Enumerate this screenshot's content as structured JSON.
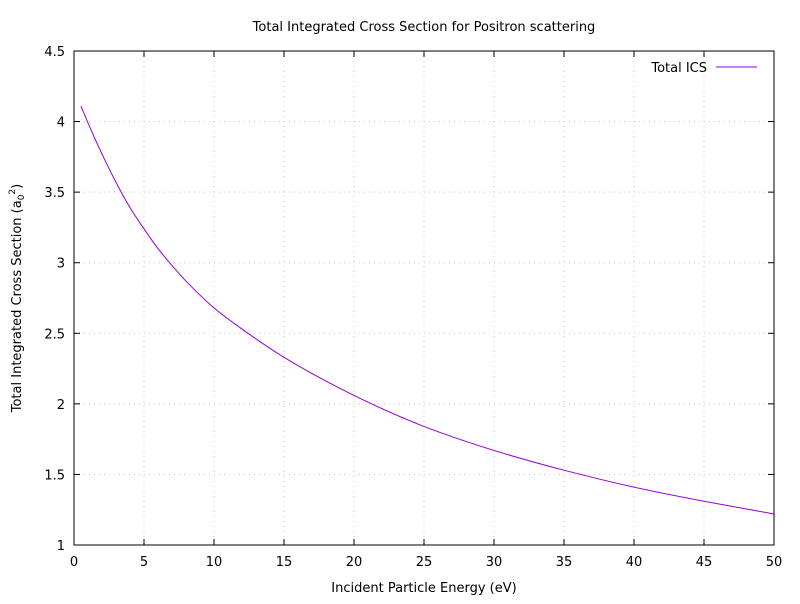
{
  "chart_data": {
    "type": "line",
    "title": "Total Integrated Cross Section for Positron scattering",
    "xlabel": "Incident Particle Energy (eV)",
    "ylabel": {
      "prefix": "Total Integrated Cross Section (a",
      "sub": "0",
      "sup": "2",
      "suffix": ")"
    },
    "xlim": [
      0,
      50
    ],
    "ylim": [
      1,
      4.5
    ],
    "xticks": [
      "0",
      "5",
      "10",
      "15",
      "20",
      "25",
      "30",
      "35",
      "40",
      "45",
      "50"
    ],
    "yticks": [
      "1",
      "1.5",
      "2",
      "2.5",
      "3",
      "3.5",
      "4",
      "4.5"
    ],
    "grid": true,
    "legend_position": "top-right",
    "series": [
      {
        "name": "Total ICS",
        "color": "#9400d3",
        "x": [
          0.5,
          1,
          2,
          3,
          4,
          5,
          6,
          7,
          8,
          10,
          12,
          15,
          20,
          25,
          30,
          35,
          40,
          45,
          50
        ],
        "y": [
          4.11,
          3.99,
          3.77,
          3.57,
          3.39,
          3.24,
          3.1,
          2.98,
          2.87,
          2.68,
          2.53,
          2.33,
          2.06,
          1.84,
          1.67,
          1.53,
          1.41,
          1.31,
          1.22
        ]
      }
    ]
  }
}
